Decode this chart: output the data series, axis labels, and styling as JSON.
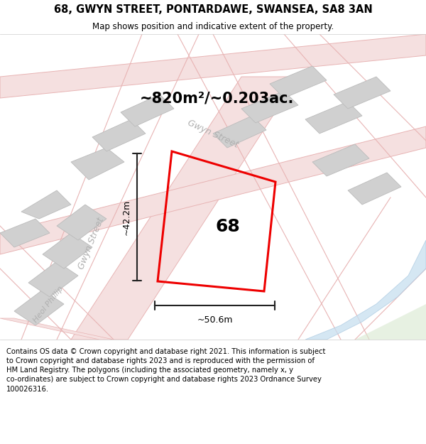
{
  "title_line1": "68, GWYN STREET, PONTARDAWE, SWANSEA, SA8 3AN",
  "title_line2": "Map shows position and indicative extent of the property.",
  "area_text": "~820m²/~0.203ac.",
  "label_68": "68",
  "dim_width": "~50.6m",
  "dim_height": "~42.2m",
  "street_label_gwyn_diag": "Gwyn Street",
  "street_label_gwyn_vert": "Gwyn Street",
  "street_label_heol": "Heol Phillip",
  "footer_text": "Contains OS data © Crown copyright and database right 2021. This information is subject to Crown copyright and database rights 2023 and is reproduced with the permission of HM Land Registry. The polygons (including the associated geometry, namely x, y co-ordinates) are subject to Crown copyright and database rights 2023 Ordnance Survey 100026316.",
  "map_bg": "#f5eeee",
  "road_color": "#e8b4b4",
  "road_fill": "#f5e0e0",
  "building_fill": "#d0d0d0",
  "building_edge": "#bbbbbb",
  "plot_color": "#ee0000",
  "water_color": "#c8dff0",
  "grass_color": "#d8e8d0",
  "dim_color": "#222222",
  "text_color": "#000000",
  "street_text_color": "#b0b0b0",
  "title_fontsize": 10.5,
  "subtitle_fontsize": 8.5,
  "area_fontsize": 15,
  "label_fontsize": 18,
  "dim_fontsize": 9,
  "street_fontsize": 9,
  "footer_fontsize": 7.2
}
